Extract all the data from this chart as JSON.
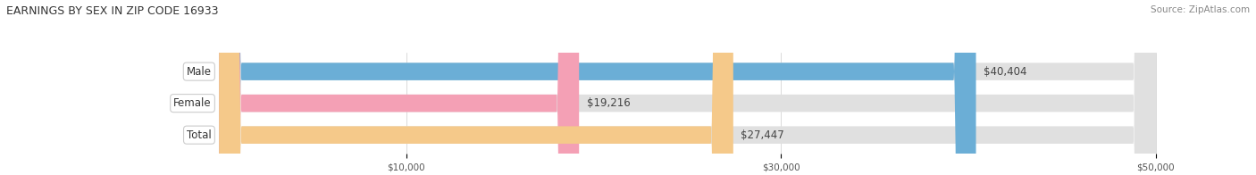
{
  "title": "EARNINGS BY SEX IN ZIP CODE 16933",
  "source": "Source: ZipAtlas.com",
  "categories": [
    "Male",
    "Female",
    "Total"
  ],
  "values": [
    40404,
    19216,
    27447
  ],
  "bar_colors": [
    "#6baed6",
    "#f4a0b5",
    "#f5c98a"
  ],
  "bar_bg_color": "#e0e0e0",
  "value_labels": [
    "$40,404",
    "$19,216",
    "$27,447"
  ],
  "xlim_min": 0,
  "xlim_max": 50000,
  "xticks": [
    10000,
    30000,
    50000
  ],
  "xtick_labels": [
    "$10,000",
    "$30,000",
    "$50,000"
  ],
  "bg_color": "#ffffff",
  "title_fontsize": 9,
  "bar_label_fontsize": 8.5,
  "value_fontsize": 8.5,
  "source_fontsize": 7.5,
  "bar_height": 0.55
}
